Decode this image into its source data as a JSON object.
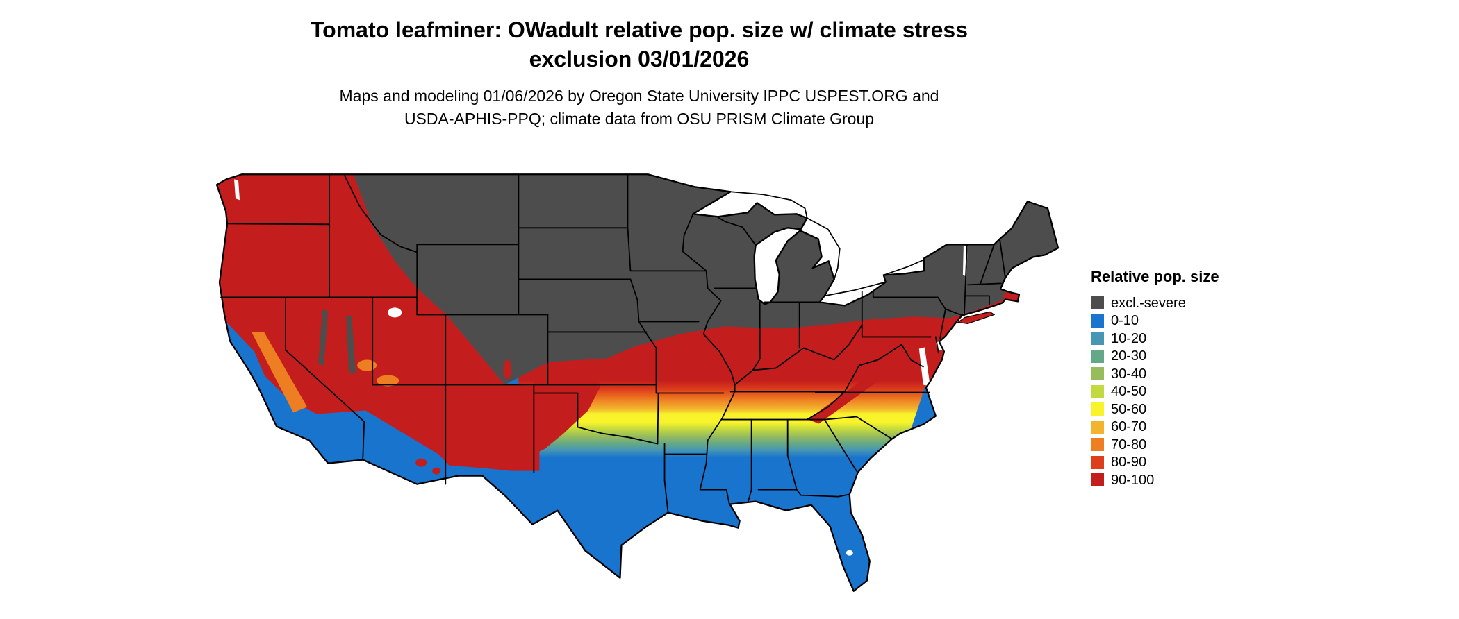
{
  "title": {
    "line1": "Tomato leafminer: OWadult relative pop. size w/ climate stress",
    "line2": "exclusion 03/01/2026"
  },
  "subtitle": {
    "line1": "Maps and modeling 01/06/2026 by Oregon State University IPPC USPEST.ORG and",
    "line2": "USDA-APHIS-PPQ; climate data from OSU PRISM Climate Group"
  },
  "map": {
    "region": "contiguous-united-states",
    "description": "Choropleth map of Tomato leafminer overwintering adult relative population size with climate stress exclusion"
  },
  "legend": {
    "title": "Relative pop. size",
    "items": [
      {
        "label": "excl.-severe",
        "color": "#4D4D4D"
      },
      {
        "label": "0-10",
        "color": "#1874CD"
      },
      {
        "label": "10-20",
        "color": "#4696B4"
      },
      {
        "label": "20-30",
        "color": "#63A888"
      },
      {
        "label": "30-40",
        "color": "#97BC5C"
      },
      {
        "label": "40-50",
        "color": "#C2D940"
      },
      {
        "label": "50-60",
        "color": "#F8F32B"
      },
      {
        "label": "60-70",
        "color": "#F2B42E"
      },
      {
        "label": "70-80",
        "color": "#EE7E22"
      },
      {
        "label": "80-90",
        "color": "#DE3E1C"
      },
      {
        "label": "90-100",
        "color": "#C41D1D"
      }
    ]
  }
}
